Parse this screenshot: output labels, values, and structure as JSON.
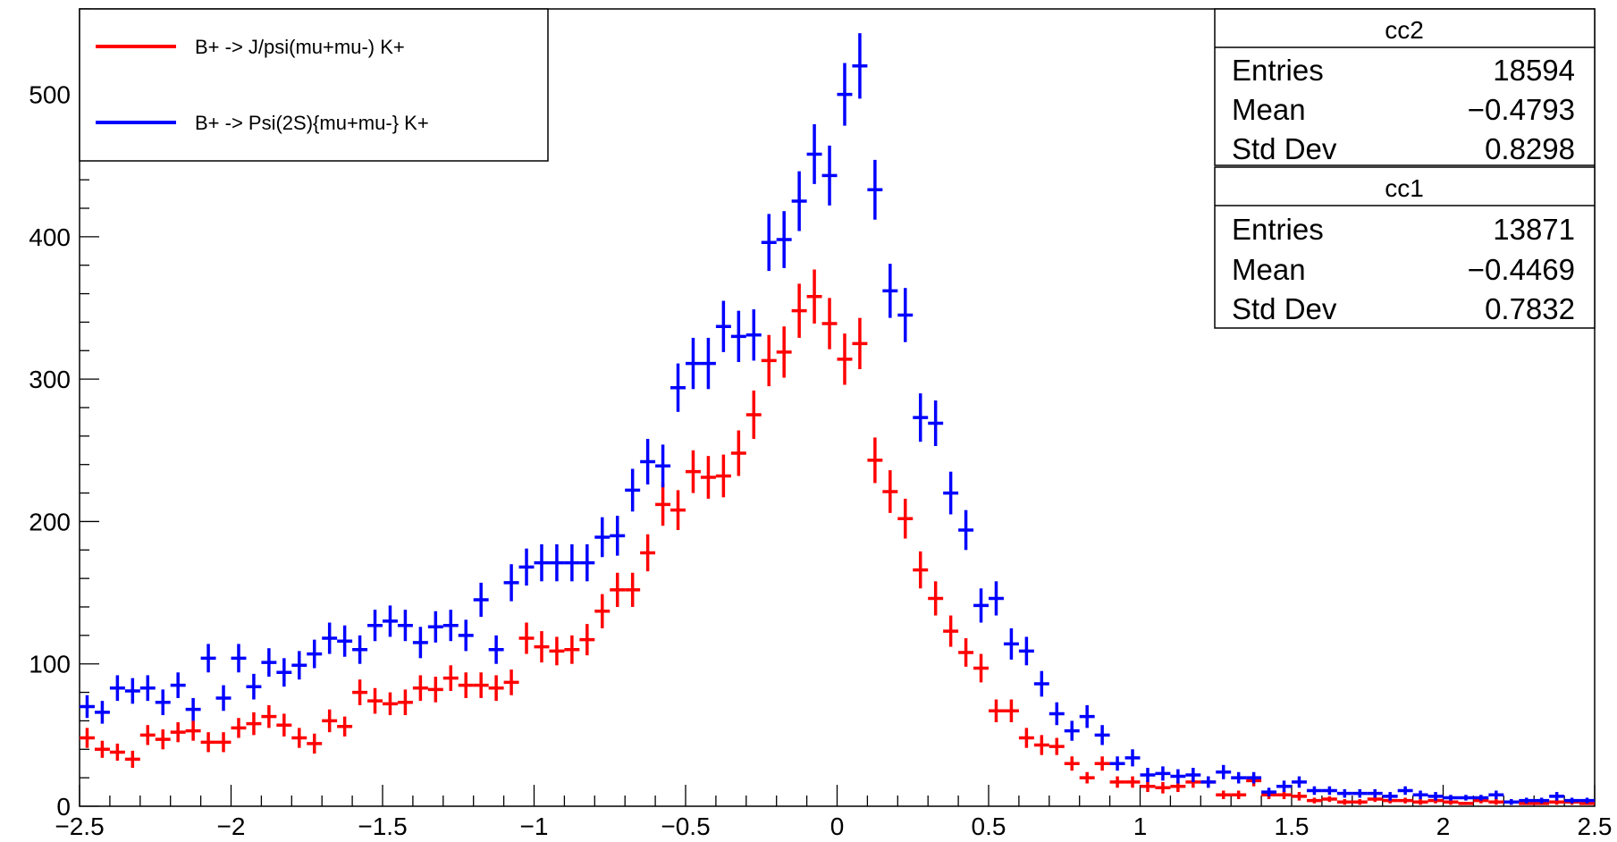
{
  "chart_data": {
    "type": "scatter",
    "title": "",
    "xlabel": "",
    "ylabel": "",
    "xlim": [
      -2.5,
      2.5
    ],
    "ylim": [
      0,
      560
    ],
    "grid": false,
    "x_ticks": [
      "−2.5",
      "−2",
      "−1.5",
      "−1",
      "−0.5",
      "0",
      "0.5",
      "1",
      "1.5",
      "2",
      "2.5"
    ],
    "y_ticks": [
      "0",
      "100",
      "200",
      "300",
      "400",
      "500"
    ],
    "bin_width": 0.05,
    "x_start": -2.475,
    "legend": {
      "placement": "top-left",
      "entries": [
        {
          "label": "B+ -> J/psi(mu+mu-) K+",
          "color": "#ff0000"
        },
        {
          "label": "B+ -> Psi(2S){mu+mu-} K+",
          "color": "#0000ff"
        }
      ]
    },
    "series": [
      {
        "color": "#ff0000",
        "values": [
          48,
          40,
          38,
          33,
          50,
          47,
          52,
          53,
          45,
          45,
          55,
          58,
          63,
          57,
          48,
          44,
          60,
          56,
          80,
          74,
          72,
          73,
          83,
          82,
          90,
          85,
          85,
          83,
          87,
          118,
          112,
          109,
          110,
          117,
          137,
          152,
          152,
          178,
          212,
          208,
          235,
          231,
          232,
          248,
          275,
          313,
          319,
          348,
          358,
          339,
          314,
          325,
          243,
          221,
          202,
          166,
          146,
          123,
          108,
          97,
          67,
          67,
          48,
          43,
          42,
          30,
          20,
          30,
          17,
          17,
          14,
          13,
          14,
          17,
          17,
          8,
          8,
          18,
          8,
          8,
          7,
          4,
          5,
          3,
          3,
          5,
          4,
          4,
          3,
          4,
          3,
          2,
          4,
          3,
          3,
          2,
          2,
          3,
          3,
          2
        ],
        "errors": [
          7,
          6,
          6,
          6,
          7,
          7,
          7,
          7,
          7,
          7,
          7,
          8,
          8,
          8,
          7,
          7,
          8,
          7,
          9,
          9,
          8,
          9,
          9,
          9,
          9,
          9,
          9,
          9,
          9,
          11,
          11,
          10,
          10,
          11,
          12,
          12,
          12,
          13,
          15,
          14,
          15,
          15,
          15,
          16,
          17,
          18,
          18,
          19,
          19,
          18,
          18,
          18,
          16,
          15,
          14,
          13,
          12,
          11,
          10,
          10,
          8,
          8,
          7,
          7,
          6,
          5,
          4,
          5,
          4,
          4,
          4,
          4,
          4,
          4,
          4,
          3,
          3,
          4,
          3,
          3,
          3,
          2,
          2,
          2,
          2,
          2,
          2,
          2,
          2,
          2,
          2,
          1,
          2,
          2,
          2,
          1,
          1,
          2,
          2,
          1
        ]
      },
      {
        "color": "#0000ff",
        "values": [
          70,
          66,
          83,
          81,
          83,
          73,
          85,
          68,
          104,
          76,
          104,
          84,
          101,
          94,
          99,
          107,
          118,
          116,
          110,
          127,
          130,
          127,
          115,
          126,
          127,
          120,
          145,
          110,
          157,
          168,
          171,
          171,
          171,
          171,
          189,
          190,
          222,
          242,
          239,
          294,
          311,
          311,
          337,
          330,
          331,
          396,
          398,
          425,
          458,
          443,
          500,
          520,
          433,
          362,
          345,
          273,
          269,
          220,
          194,
          141,
          146,
          114,
          109,
          86,
          65,
          53,
          63,
          50,
          30,
          34,
          22,
          23,
          21,
          22,
          17,
          24,
          20,
          20,
          10,
          14,
          17,
          11,
          11,
          9,
          9,
          9,
          7,
          11,
          8,
          7,
          6,
          6,
          6,
          8,
          3,
          4,
          4,
          7,
          4,
          4
        ],
        "errors": [
          8,
          8,
          9,
          9,
          9,
          9,
          9,
          8,
          10,
          9,
          10,
          9,
          10,
          10,
          10,
          10,
          11,
          11,
          10,
          11,
          11,
          11,
          11,
          11,
          11,
          11,
          12,
          10,
          13,
          13,
          13,
          13,
          13,
          13,
          14,
          14,
          15,
          16,
          15,
          17,
          18,
          18,
          18,
          18,
          18,
          20,
          20,
          21,
          21,
          21,
          22,
          23,
          21,
          19,
          19,
          17,
          16,
          15,
          14,
          12,
          12,
          11,
          10,
          9,
          8,
          7,
          8,
          7,
          5,
          6,
          5,
          5,
          5,
          5,
          4,
          5,
          4,
          4,
          3,
          4,
          4,
          3,
          3,
          3,
          3,
          3,
          3,
          3,
          3,
          3,
          2,
          2,
          2,
          3,
          2,
          2,
          2,
          3,
          2,
          2
        ]
      }
    ]
  },
  "stats_boxes": [
    {
      "title": "cc2",
      "rows": [
        {
          "label": "Entries",
          "value": "18594"
        },
        {
          "label": "Mean",
          "value": "−0.4793"
        },
        {
          "label": "Std Dev",
          "value": "0.8298"
        }
      ]
    },
    {
      "title": "cc1",
      "rows": [
        {
          "label": "Entries",
          "value": "13871"
        },
        {
          "label": "Mean",
          "value": "−0.4469"
        },
        {
          "label": "Std Dev",
          "value": "0.7832"
        }
      ]
    }
  ]
}
